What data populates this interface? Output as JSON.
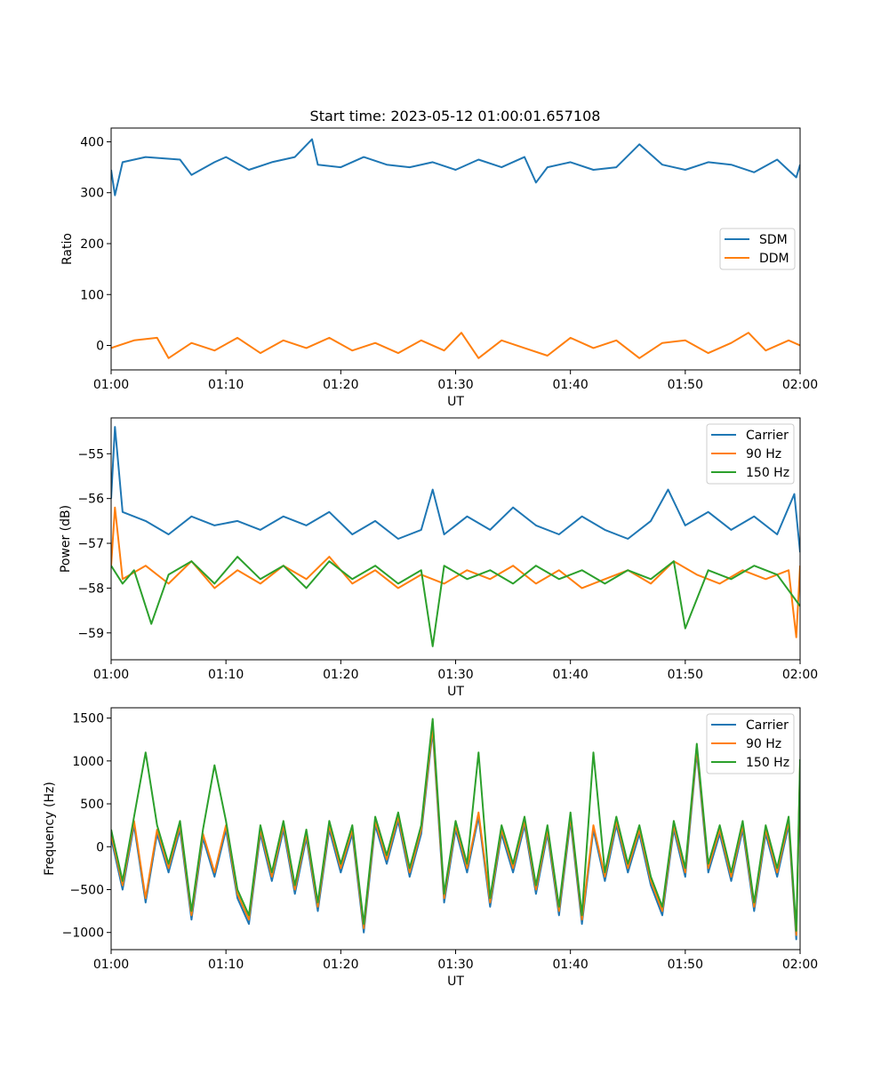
{
  "figure_title": "Start time: 2023-05-12 01:00:01.657108",
  "colors": {
    "blue": "#1f77b4",
    "orange": "#ff7f0e",
    "green": "#2ca02c"
  },
  "chart_data": [
    {
      "type": "line",
      "title": "Start time: 2023-05-12 01:00:01.657108",
      "xlabel": "UT",
      "ylabel": "Ratio",
      "xlim": [
        "01:00",
        "02:00"
      ],
      "x_ticks": [
        "01:00",
        "01:10",
        "01:20",
        "01:30",
        "01:40",
        "01:50",
        "02:00"
      ],
      "ylim": [
        -48,
        427
      ],
      "y_ticks": [
        0,
        100,
        200,
        300,
        400
      ],
      "legend_position": "right",
      "grid": false,
      "series": [
        {
          "name": "SDM",
          "color": "#1f77b4",
          "x": [
            "01:00",
            "01:00:20",
            "01:01",
            "01:03",
            "01:06",
            "01:07",
            "01:09",
            "01:10",
            "01:12",
            "01:14",
            "01:16",
            "01:17:30",
            "01:18",
            "01:20",
            "01:22",
            "01:24",
            "01:26",
            "01:28",
            "01:30",
            "01:32",
            "01:34",
            "01:36",
            "01:37",
            "01:38",
            "01:40",
            "01:42",
            "01:44",
            "01:46",
            "01:48",
            "01:50",
            "01:52",
            "01:54",
            "01:56",
            "01:58",
            "01:59:40",
            "02:00"
          ],
          "y": [
            345,
            295,
            360,
            370,
            365,
            335,
            360,
            370,
            345,
            360,
            370,
            405,
            355,
            350,
            370,
            355,
            350,
            360,
            345,
            365,
            350,
            370,
            320,
            350,
            360,
            345,
            350,
            395,
            355,
            345,
            360,
            355,
            340,
            365,
            330,
            355
          ]
        },
        {
          "name": "DDM",
          "color": "#ff7f0e",
          "x": [
            "01:00",
            "01:02",
            "01:04",
            "01:05",
            "01:07",
            "01:09",
            "01:11",
            "01:13",
            "01:15",
            "01:17",
            "01:19",
            "01:21",
            "01:23",
            "01:25",
            "01:27",
            "01:29",
            "01:30:30",
            "01:32",
            "01:34",
            "01:36",
            "01:38",
            "01:40",
            "01:42",
            "01:44",
            "01:46",
            "01:48",
            "01:50",
            "01:52",
            "01:54",
            "01:55:30",
            "01:57",
            "01:59",
            "02:00"
          ],
          "y": [
            -5,
            10,
            15,
            -25,
            5,
            -10,
            15,
            -15,
            10,
            -5,
            15,
            -10,
            5,
            -15,
            10,
            -10,
            25,
            -25,
            10,
            -5,
            -20,
            15,
            -5,
            10,
            -25,
            5,
            10,
            -15,
            5,
            25,
            -10,
            10,
            0
          ]
        }
      ]
    },
    {
      "type": "line",
      "title": "",
      "xlabel": "UT",
      "ylabel": "Power (dB)",
      "xlim": [
        "01:00",
        "02:00"
      ],
      "x_ticks": [
        "01:00",
        "01:10",
        "01:20",
        "01:30",
        "01:40",
        "01:50",
        "02:00"
      ],
      "ylim": [
        -59.6,
        -54.2
      ],
      "y_ticks": [
        -59,
        -58,
        -57,
        -56,
        -55
      ],
      "y_tick_labels": [
        "−59",
        "−58",
        "−57",
        "−56",
        "−55"
      ],
      "legend_position": "top-right",
      "grid": false,
      "series": [
        {
          "name": "Carrier",
          "color": "#1f77b4",
          "x": [
            "01:00",
            "01:00:20",
            "01:01",
            "01:03",
            "01:05",
            "01:07",
            "01:09",
            "01:11",
            "01:13",
            "01:15",
            "01:17",
            "01:19",
            "01:21",
            "01:23",
            "01:25",
            "01:27",
            "01:28",
            "01:29",
            "01:31",
            "01:33",
            "01:35",
            "01:37",
            "01:39",
            "01:41",
            "01:43",
            "01:45",
            "01:47",
            "01:48:30",
            "01:50",
            "01:52",
            "01:54",
            "01:56",
            "01:58",
            "01:59:30",
            "02:00"
          ],
          "y": [
            -56.0,
            -54.4,
            -56.3,
            -56.5,
            -56.8,
            -56.4,
            -56.6,
            -56.5,
            -56.7,
            -56.4,
            -56.6,
            -56.3,
            -56.8,
            -56.5,
            -56.9,
            -56.7,
            -55.8,
            -56.8,
            -56.4,
            -56.7,
            -56.2,
            -56.6,
            -56.8,
            -56.4,
            -56.7,
            -56.9,
            -56.5,
            -55.8,
            -56.6,
            -56.3,
            -56.7,
            -56.4,
            -56.8,
            -55.9,
            -57.2
          ]
        },
        {
          "name": "90 Hz",
          "color": "#ff7f0e",
          "x": [
            "01:00",
            "01:00:20",
            "01:01",
            "01:03",
            "01:05",
            "01:07",
            "01:09",
            "01:11",
            "01:13",
            "01:15",
            "01:17",
            "01:19",
            "01:21",
            "01:23",
            "01:25",
            "01:27",
            "01:29",
            "01:31",
            "01:33",
            "01:35",
            "01:37",
            "01:39",
            "01:41",
            "01:43",
            "01:45",
            "01:47",
            "01:49",
            "01:51",
            "01:53",
            "01:55",
            "01:57",
            "01:59",
            "01:59:40",
            "02:00"
          ],
          "y": [
            -57.5,
            -56.2,
            -57.8,
            -57.5,
            -57.9,
            -57.4,
            -58.0,
            -57.6,
            -57.9,
            -57.5,
            -57.8,
            -57.3,
            -57.9,
            -57.6,
            -58.0,
            -57.7,
            -57.9,
            -57.6,
            -57.8,
            -57.5,
            -57.9,
            -57.6,
            -58.0,
            -57.8,
            -57.6,
            -57.9,
            -57.4,
            -57.7,
            -57.9,
            -57.6,
            -57.8,
            -57.6,
            -59.1,
            -57.5
          ]
        },
        {
          "name": "150 Hz",
          "color": "#2ca02c",
          "x": [
            "01:00",
            "01:01",
            "01:02",
            "01:03:30",
            "01:05",
            "01:07",
            "01:09",
            "01:11",
            "01:13",
            "01:15",
            "01:17",
            "01:19",
            "01:21",
            "01:23",
            "01:25",
            "01:27",
            "01:28",
            "01:29",
            "01:31",
            "01:33",
            "01:35",
            "01:37",
            "01:39",
            "01:41",
            "01:43",
            "01:45",
            "01:47",
            "01:49",
            "01:50",
            "01:52",
            "01:54",
            "01:56",
            "01:58",
            "02:00"
          ],
          "y": [
            -57.5,
            -57.9,
            -57.6,
            -58.8,
            -57.7,
            -57.4,
            -57.9,
            -57.3,
            -57.8,
            -57.5,
            -58.0,
            -57.4,
            -57.8,
            -57.5,
            -57.9,
            -57.6,
            -59.3,
            -57.5,
            -57.8,
            -57.6,
            -57.9,
            -57.5,
            -57.8,
            -57.6,
            -57.9,
            -57.6,
            -57.8,
            -57.4,
            -58.9,
            -57.6,
            -57.8,
            -57.5,
            -57.7,
            -58.4
          ]
        }
      ]
    },
    {
      "type": "line",
      "title": "",
      "xlabel": "UT",
      "ylabel": "Frequency (Hz)",
      "xlim": [
        "01:00",
        "02:00"
      ],
      "x_ticks": [
        "01:00",
        "01:10",
        "01:20",
        "01:30",
        "01:40",
        "01:50",
        "02:00"
      ],
      "ylim": [
        -1200,
        1620
      ],
      "y_ticks": [
        -1000,
        -500,
        0,
        500,
        1000,
        1500
      ],
      "y_tick_labels": [
        "−1000",
        "−500",
        "0",
        "500",
        "1000",
        "1500"
      ],
      "legend_position": "top-right",
      "grid": false,
      "series": [
        {
          "name": "Carrier",
          "color": "#1f77b4",
          "x": [
            "01:00",
            "01:01",
            "01:02",
            "01:03",
            "01:04",
            "01:05",
            "01:06",
            "01:07",
            "01:08",
            "01:09",
            "01:10",
            "01:11",
            "01:12",
            "01:13",
            "01:14",
            "01:15",
            "01:16",
            "01:17",
            "01:18",
            "01:19",
            "01:20",
            "01:21",
            "01:22",
            "01:23",
            "01:24",
            "01:25",
            "01:26",
            "01:27",
            "01:28",
            "01:29",
            "01:30",
            "01:31",
            "01:32",
            "01:33",
            "01:34",
            "01:35",
            "01:36",
            "01:37",
            "01:38",
            "01:39",
            "01:40",
            "01:41",
            "01:42",
            "01:43",
            "01:44",
            "01:45",
            "01:46",
            "01:47",
            "01:48",
            "01:49",
            "01:50",
            "01:51",
            "01:52",
            "01:53",
            "01:54",
            "01:55",
            "01:56",
            "01:57",
            "01:58",
            "01:59",
            "01:59:40",
            "02:00"
          ],
          "y": [
            100,
            -500,
            250,
            -650,
            150,
            -300,
            200,
            -850,
            100,
            -350,
            200,
            -600,
            -900,
            150,
            -400,
            200,
            -550,
            100,
            -750,
            200,
            -300,
            150,
            -1000,
            250,
            -200,
            300,
            -350,
            150,
            1350,
            -650,
            200,
            -300,
            350,
            -700,
            150,
            -300,
            250,
            -550,
            150,
            -800,
            300,
            -900,
            200,
            -400,
            250,
            -300,
            150,
            -450,
            -800,
            200,
            -350,
            1100,
            -300,
            150,
            -400,
            200,
            -750,
            150,
            -350,
            250,
            -1080,
            900
          ]
        },
        {
          "name": "90 Hz",
          "color": "#ff7f0e",
          "x": [
            "01:00",
            "01:01",
            "01:02",
            "01:03",
            "01:04",
            "01:05",
            "01:06",
            "01:07",
            "01:08",
            "01:09",
            "01:10",
            "01:11",
            "01:12",
            "01:13",
            "01:14",
            "01:15",
            "01:16",
            "01:17",
            "01:18",
            "01:19",
            "01:20",
            "01:21",
            "01:22",
            "01:23",
            "01:24",
            "01:25",
            "01:26",
            "01:27",
            "01:28",
            "01:29",
            "01:30",
            "01:31",
            "01:32",
            "01:33",
            "01:34",
            "01:35",
            "01:36",
            "01:37",
            "01:38",
            "01:39",
            "01:40",
            "01:41",
            "01:42",
            "01:43",
            "01:44",
            "01:45",
            "01:46",
            "01:47",
            "01:48",
            "01:49",
            "01:50",
            "01:51",
            "01:52",
            "01:53",
            "01:54",
            "01:55",
            "01:56",
            "01:57",
            "01:58",
            "01:59",
            "01:59:40",
            "02:00"
          ],
          "y": [
            150,
            -450,
            300,
            -600,
            200,
            -250,
            250,
            -800,
            150,
            -300,
            250,
            -550,
            -850,
            200,
            -350,
            250,
            -500,
            150,
            -700,
            250,
            -250,
            200,
            -950,
            300,
            -150,
            350,
            -300,
            200,
            1400,
            -600,
            250,
            -250,
            400,
            -650,
            200,
            -250,
            300,
            -500,
            200,
            -750,
            350,
            -850,
            250,
            -350,
            300,
            -250,
            200,
            -400,
            -750,
            250,
            -300,
            1150,
            -250,
            200,
            -350,
            250,
            -700,
            200,
            -300,
            300,
            -1030,
            950
          ]
        },
        {
          "name": "150 Hz",
          "color": "#2ca02c",
          "x": [
            "01:00",
            "01:01",
            "01:02",
            "01:03",
            "01:04",
            "01:05",
            "01:06",
            "01:07",
            "01:08",
            "01:09",
            "01:10",
            "01:11",
            "01:12",
            "01:13",
            "01:14",
            "01:15",
            "01:16",
            "01:17",
            "01:18",
            "01:19",
            "01:20",
            "01:21",
            "01:22",
            "01:23",
            "01:24",
            "01:25",
            "01:26",
            "01:27",
            "01:28",
            "01:29",
            "01:30",
            "01:31",
            "01:32",
            "01:33",
            "01:34",
            "01:35",
            "01:36",
            "01:37",
            "01:38",
            "01:39",
            "01:40",
            "01:41",
            "01:42",
            "01:43",
            "01:44",
            "01:45",
            "01:46",
            "01:47",
            "01:48",
            "01:49",
            "01:50",
            "01:51",
            "01:52",
            "01:53",
            "01:54",
            "01:55",
            "01:56",
            "01:57",
            "01:58",
            "01:59",
            "01:59:40",
            "02:00"
          ],
          "y": [
            200,
            -400,
            350,
            1100,
            250,
            -200,
            300,
            -750,
            200,
            950,
            300,
            -500,
            -800,
            250,
            -300,
            300,
            -450,
            200,
            -650,
            300,
            -200,
            250,
            -900,
            350,
            -100,
            400,
            -250,
            250,
            1490,
            -550,
            300,
            -200,
            1100,
            -600,
            250,
            -200,
            350,
            -450,
            250,
            -700,
            400,
            -800,
            1100,
            -300,
            350,
            -200,
            250,
            -350,
            -700,
            300,
            -250,
            1200,
            -200,
            250,
            -300,
            300,
            -650,
            250,
            -250,
            350,
            -980,
            1020
          ]
        }
      ]
    }
  ]
}
